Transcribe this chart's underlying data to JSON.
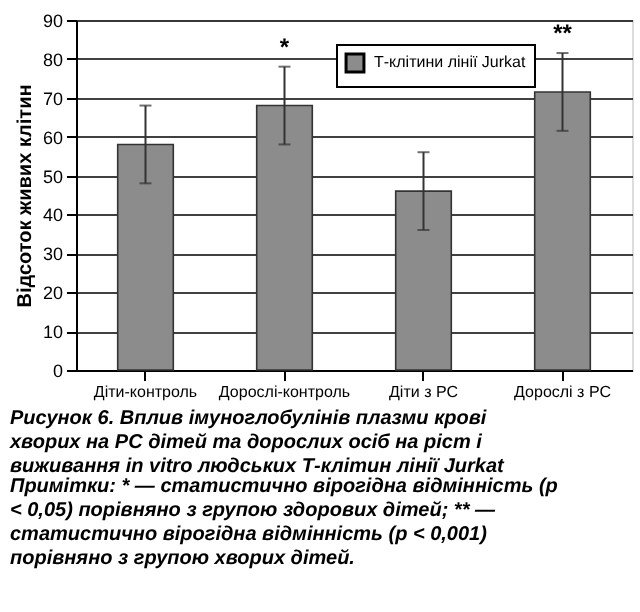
{
  "chart_data": {
    "type": "bar",
    "title": "Рисунок 6. Вплив імуноглобулінів плазми крові хворих на РС дітей та дорослих осіб на ріст і виживання in vitro людських Т-клітин лінії Jurkat",
    "ylabel": "Відсоток живих клітин",
    "categories": [
      "Діти-контроль",
      "Дорослі-контроль",
      "Діти з РС",
      "Дорослі з РС"
    ],
    "series": [
      {
        "name": "Т-клітини лінії Jurkat",
        "color": "#8c8c8c",
        "values": [
          58,
          68,
          46,
          71.5
        ],
        "errors": [
          10,
          10,
          10,
          10
        ]
      }
    ],
    "ylim": [
      0,
      90
    ],
    "yticks": [
      0,
      10,
      20,
      30,
      40,
      50,
      60,
      70,
      80,
      90
    ],
    "grid": "y",
    "legend": "top right",
    "annotations": [
      {
        "text": "*",
        "x": "Дорослі-контроль",
        "y": 78
      },
      {
        "text": "**",
        "x": "Дорослі з РС",
        "y": 81.5
      },
      "Примітки: * — статистично вірогідна відмінність (p < 0,05) порівняно з групою здорових дітей; ** — статистично вірогідна відмінність (p < 0,001) порівняно з групою хворих дітей."
    ]
  }
}
